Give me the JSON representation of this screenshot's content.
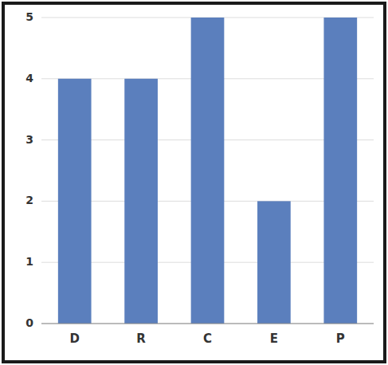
{
  "chart_data": {
    "type": "bar",
    "categories": [
      "D",
      "R",
      "C",
      "E",
      "P"
    ],
    "values": [
      4,
      4,
      5,
      2,
      5
    ],
    "color": "#5B7FBD",
    "ylim": [
      0,
      5
    ],
    "yticks": [
      0,
      1,
      2,
      3,
      4,
      5
    ],
    "grid": true
  }
}
